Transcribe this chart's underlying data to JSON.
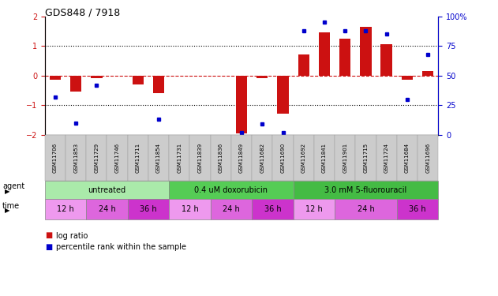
{
  "title": "GDS848 / 7918",
  "samples": [
    "GSM11706",
    "GSM11853",
    "GSM11729",
    "GSM11746",
    "GSM11711",
    "GSM11854",
    "GSM11731",
    "GSM11839",
    "GSM11836",
    "GSM11849",
    "GSM11682",
    "GSM11690",
    "GSM11692",
    "GSM11841",
    "GSM11901",
    "GSM11715",
    "GSM11724",
    "GSM11684",
    "GSM11696"
  ],
  "log_ratio": [
    -0.15,
    -0.55,
    -0.1,
    0.0,
    -0.3,
    -0.6,
    0.0,
    0.0,
    0.0,
    -1.95,
    -0.08,
    -1.3,
    0.7,
    1.45,
    1.25,
    1.65,
    1.05,
    -0.15,
    0.15
  ],
  "percentile": [
    32,
    10,
    42,
    null,
    null,
    13,
    null,
    null,
    null,
    2,
    9,
    2,
    88,
    95,
    88,
    88,
    85,
    30,
    68
  ],
  "ylim_left": [
    -2,
    2
  ],
  "ylim_right": [
    0,
    100
  ],
  "yticks_left": [
    -2,
    -1,
    0,
    1,
    2
  ],
  "yticks_right": [
    0,
    25,
    50,
    75,
    100
  ],
  "ytick_labels_right": [
    "0",
    "25",
    "50",
    "75",
    "100%"
  ],
  "bar_color": "#cc1111",
  "dot_color": "#0000cc",
  "agent_groups": [
    {
      "label": "untreated",
      "start": 0,
      "end": 6,
      "color": "#aaeaaa"
    },
    {
      "label": "0.4 uM doxorubicin",
      "start": 6,
      "end": 12,
      "color": "#55cc55"
    },
    {
      "label": "3.0 mM 5-fluorouracil",
      "start": 12,
      "end": 19,
      "color": "#44bb44"
    }
  ],
  "time_groups": [
    {
      "label": "12 h",
      "start": 0,
      "end": 2,
      "color": "#ee99ee"
    },
    {
      "label": "24 h",
      "start": 2,
      "end": 4,
      "color": "#dd66dd"
    },
    {
      "label": "36 h",
      "start": 4,
      "end": 6,
      "color": "#cc33cc"
    },
    {
      "label": "12 h",
      "start": 6,
      "end": 8,
      "color": "#ee99ee"
    },
    {
      "label": "24 h",
      "start": 8,
      "end": 10,
      "color": "#dd66dd"
    },
    {
      "label": "36 h",
      "start": 10,
      "end": 12,
      "color": "#cc33cc"
    },
    {
      "label": "12 h",
      "start": 12,
      "end": 14,
      "color": "#ee99ee"
    },
    {
      "label": "24 h",
      "start": 14,
      "end": 17,
      "color": "#dd66dd"
    },
    {
      "label": "36 h",
      "start": 17,
      "end": 19,
      "color": "#cc33cc"
    }
  ],
  "background_color": "#ffffff"
}
